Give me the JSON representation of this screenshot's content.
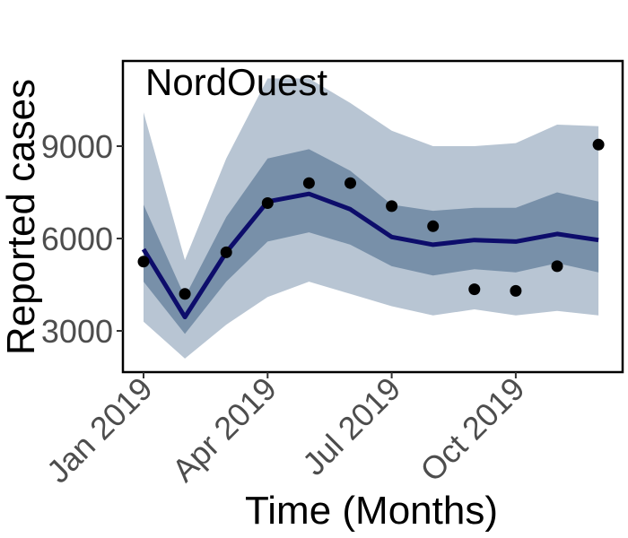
{
  "chart_data": {
    "type": "line",
    "panel_label": "NordOuest",
    "xlabel": "Time (Months)",
    "ylabel": "Reported cases",
    "x": [
      "2019-01",
      "2019-02",
      "2019-03",
      "2019-04",
      "2019-05",
      "2019-06",
      "2019-07",
      "2019-08",
      "2019-09",
      "2019-10",
      "2019-11",
      "2019-12"
    ],
    "x_ticks": [
      {
        "x": "2019-01",
        "label": "Jan 2019"
      },
      {
        "x": "2019-04",
        "label": "Apr 2019"
      },
      {
        "x": "2019-07",
        "label": "Jul 2019"
      },
      {
        "x": "2019-10",
        "label": "Oct 2019"
      }
    ],
    "y_ticks": [
      {
        "value": 3000,
        "label": "3000"
      },
      {
        "value": 6000,
        "label": "6000"
      },
      {
        "value": 9000,
        "label": "9000"
      }
    ],
    "ylim": [
      1600,
      11200
    ],
    "grid": false,
    "series": [
      {
        "kind": "band",
        "color": "#b8c5d3",
        "lower": [
          3300,
          2100,
          3200,
          4100,
          4600,
          4200,
          3800,
          3500,
          3700,
          3500,
          3650,
          3500
        ],
        "upper": [
          10100,
          5300,
          8600,
          11200,
          11200,
          10400,
          9500,
          9000,
          9000,
          9100,
          9700,
          9650
        ]
      },
      {
        "kind": "band",
        "color": "#7890a9",
        "lower": [
          4600,
          2900,
          4600,
          5900,
          6200,
          5800,
          5100,
          4800,
          5000,
          4900,
          5200,
          4900
        ],
        "upper": [
          7100,
          4100,
          6700,
          8600,
          8900,
          8200,
          7100,
          6900,
          7000,
          7000,
          7500,
          7200
        ]
      },
      {
        "kind": "line",
        "color": "#0d0d6b",
        "values": [
          5650,
          3450,
          5550,
          7200,
          7450,
          6950,
          6050,
          5800,
          5950,
          5900,
          6150,
          5950
        ]
      },
      {
        "kind": "points",
        "color": "#000000",
        "values": [
          5250,
          4200,
          5550,
          7150,
          7800,
          7800,
          7050,
          6400,
          4350,
          4300,
          5100,
          9050
        ]
      }
    ]
  }
}
